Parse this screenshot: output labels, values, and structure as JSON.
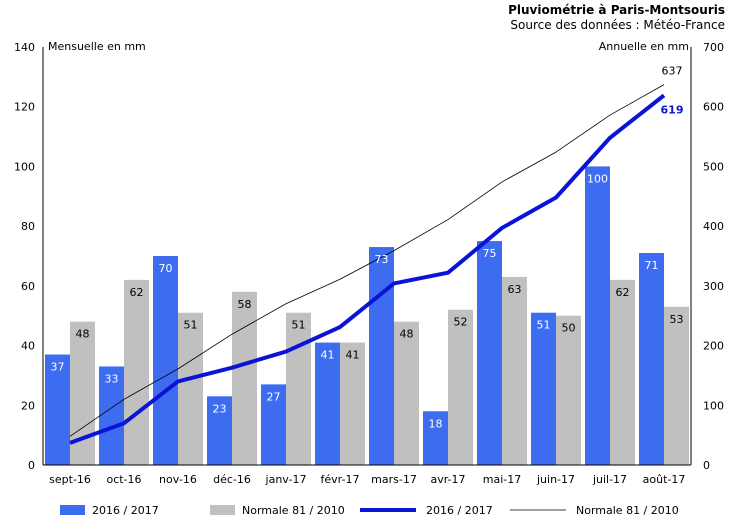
{
  "chart_data": {
    "type": "bar",
    "title": "Pluviométrie à Paris-Montsouris",
    "subtitle": "Source des données : Météo-France",
    "ylabel_left": "Mensuelle en mm",
    "ylabel_right": "Annuelle en mm",
    "ylim_left": [
      0,
      140
    ],
    "yticks_left": [
      0,
      20,
      40,
      60,
      80,
      100,
      120,
      140
    ],
    "ylim_right": [
      0,
      700
    ],
    "yticks_right": [
      0,
      100,
      200,
      300,
      400,
      500,
      600,
      700
    ],
    "grid": false,
    "legend_position": "bottom",
    "categories": [
      "sept-16",
      "oct-16",
      "nov-16",
      "déc-16",
      "janv-17",
      "févr-17",
      "mars-17",
      "avr-17",
      "mai-17",
      "juin-17",
      "juil-17",
      "août-17"
    ],
    "series": [
      {
        "name": "2016 / 2017",
        "kind": "bar",
        "axis": "left",
        "color": "#3d6cf0",
        "label_color": "#ffffff",
        "values": [
          37,
          33,
          70,
          23,
          27,
          41,
          73,
          18,
          75,
          51,
          100,
          71
        ]
      },
      {
        "name": "Normale 81 / 2010",
        "kind": "bar",
        "axis": "left",
        "color": "#c0c0c0",
        "label_color": "#000000",
        "values": [
          48,
          62,
          51,
          58,
          51,
          41,
          48,
          52,
          63,
          50,
          62,
          53
        ]
      },
      {
        "name": "2016 / 2017",
        "kind": "line",
        "axis": "right",
        "color": "#0a14d6",
        "width": 4,
        "values": [
          37,
          70,
          140,
          163,
          190,
          231,
          304,
          322,
          397,
          448,
          548,
          619
        ],
        "end_label": "619"
      },
      {
        "name": "Normale 81 / 2010",
        "kind": "line",
        "axis": "right",
        "color": "#000000",
        "width": 0.8,
        "values": [
          48,
          110,
          161,
          219,
          270,
          311,
          359,
          411,
          474,
          524,
          586,
          637
        ],
        "end_label": "637"
      }
    ]
  }
}
